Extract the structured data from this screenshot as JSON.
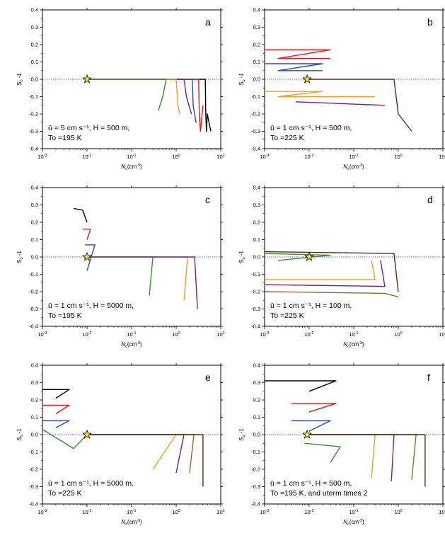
{
  "chart_data": [
    {
      "panel": "a",
      "type": "line",
      "ylabel": "S_o -1",
      "xlabel": "N_c(cm^-3)",
      "xscale": "log",
      "xlim": [
        0.001,
        10
      ],
      "ylim": [
        -0.4,
        0.4
      ],
      "annotation": [
        "ū = 5 cm s⁻¹, H = 500 m,",
        "To =195 K"
      ],
      "star": [
        0.01,
        0.0
      ],
      "series": [
        {
          "color": "#000000",
          "points": [
            [
              0.01,
              0
            ],
            [
              4.5,
              0
            ],
            [
              4.6,
              -0.2
            ],
            [
              4.8,
              -0.3
            ],
            [
              5,
              -0.2
            ],
            [
              6,
              -0.3
            ]
          ]
        },
        {
          "color": "#e01818",
          "points": [
            [
              0.01,
              0
            ],
            [
              3.2,
              0
            ],
            [
              3.3,
              -0.2
            ],
            [
              3.5,
              -0.3
            ],
            [
              4,
              -0.15
            ]
          ]
        },
        {
          "color": "#2a48b0",
          "points": [
            [
              0.01,
              0
            ],
            [
              2.3,
              0
            ],
            [
              2.4,
              -0.15
            ],
            [
              2.8,
              -0.25
            ]
          ]
        },
        {
          "color": "#7a1e80",
          "points": [
            [
              0.01,
              0
            ],
            [
              1.5,
              0
            ],
            [
              1.7,
              -0.1
            ],
            [
              2.2,
              -0.2
            ]
          ]
        },
        {
          "color": "#f0a020",
          "points": [
            [
              0.01,
              0
            ],
            [
              1,
              0
            ],
            [
              1.1,
              -0.15
            ],
            [
              1.2,
              -0.2
            ]
          ]
        },
        {
          "color": "#3a8a30",
          "points": [
            [
              0.01,
              0
            ],
            [
              0.6,
              0
            ],
            [
              0.5,
              -0.1
            ],
            [
              0.4,
              -0.18
            ]
          ]
        }
      ]
    },
    {
      "panel": "b",
      "type": "line",
      "ylabel": "S_o -1",
      "xlabel": "N_c(cm^-3)",
      "xscale": "log",
      "xlim": [
        0.001,
        10
      ],
      "ylim": [
        -0.4,
        0.4
      ],
      "annotation": [
        "ū = 1 cm s⁻¹, H = 500 m,",
        "To =225 K"
      ],
      "star": [
        0.009,
        0.0
      ],
      "series": [
        {
          "color": "#e01818",
          "points": [
            [
              0.001,
              0.17
            ],
            [
              0.03,
              0.17
            ],
            [
              0.002,
              0.12
            ],
            [
              0.03,
              0.12
            ]
          ]
        },
        {
          "color": "#2a48b0",
          "points": [
            [
              0.001,
              0.09
            ],
            [
              0.02,
              0.09
            ],
            [
              0.002,
              0.05
            ],
            [
              0.02,
              0.05
            ]
          ]
        },
        {
          "color": "#f0a020",
          "points": [
            [
              0.001,
              -0.07
            ],
            [
              0.02,
              -0.07
            ],
            [
              0.002,
              -0.1
            ],
            [
              0.3,
              -0.1
            ]
          ]
        },
        {
          "color": "#7a1e80",
          "points": [
            [
              0.005,
              -0.13
            ],
            [
              0.05,
              -0.14
            ],
            [
              0.5,
              -0.15
            ]
          ]
        },
        {
          "color": "#5a2a10",
          "points": [
            [
              0.01,
              0
            ],
            [
              0.8,
              0
            ],
            [
              1,
              -0.2
            ],
            [
              2,
              -0.3
            ]
          ]
        }
      ]
    },
    {
      "panel": "c",
      "type": "line",
      "ylabel": "S_o -1",
      "xlabel": "N_c(cm^-3)",
      "xscale": "log",
      "xlim": [
        0.001,
        10
      ],
      "ylim": [
        -0.4,
        0.4
      ],
      "annotation": [
        "ū = 1 cm s⁻¹, H = 5000 m,",
        "To =195 K"
      ],
      "star": [
        0.01,
        0.0
      ],
      "series": [
        {
          "color": "#000000",
          "points": [
            [
              0.005,
              0.28
            ],
            [
              0.008,
              0.27
            ],
            [
              0.01,
              0.2
            ]
          ]
        },
        {
          "color": "#e01818",
          "points": [
            [
              0.008,
              0.16
            ],
            [
              0.012,
              0.16
            ],
            [
              0.01,
              0.1
            ]
          ]
        },
        {
          "color": "#2a48b0",
          "points": [
            [
              0.009,
              0.07
            ],
            [
              0.015,
              0.07
            ],
            [
              0.01,
              -0.08
            ]
          ]
        },
        {
          "color": "#3a8a30",
          "points": [
            [
              0.01,
              0
            ],
            [
              0.3,
              0
            ],
            [
              0.25,
              -0.22
            ]
          ]
        },
        {
          "color": "#f0a020",
          "points": [
            [
              0.01,
              0
            ],
            [
              1.8,
              0
            ],
            [
              1.5,
              -0.25
            ]
          ]
        },
        {
          "color": "#7a1e80",
          "points": [
            [
              0.01,
              0
            ],
            [
              2.6,
              0
            ],
            [
              3,
              -0.3
            ]
          ]
        }
      ]
    },
    {
      "panel": "d",
      "type": "line",
      "ylabel": "S_o -1",
      "xlabel": "N_c(cm^-3)",
      "xscale": "log",
      "xlim": [
        0.001,
        10
      ],
      "ylim": [
        -0.4,
        0.4
      ],
      "annotation": [
        "ū = 1 cm s⁻¹, H = 100 m,",
        "To =225 K"
      ],
      "star": [
        0.01,
        0.0
      ],
      "series": [
        {
          "color": "#3a8a30",
          "points": [
            [
              0.001,
              0.02
            ],
            [
              0.03,
              0.01
            ],
            [
              0.002,
              -0.02
            ]
          ]
        },
        {
          "color": "#5a2a10",
          "points": [
            [
              0.001,
              0.03
            ],
            [
              0.8,
              0.02
            ],
            [
              1,
              -0.2
            ]
          ]
        },
        {
          "color": "#f0a020",
          "points": [
            [
              0.001,
              -0.13
            ],
            [
              0.3,
              -0.13
            ],
            [
              0.25,
              -0.02
            ]
          ]
        },
        {
          "color": "#7a1e80",
          "points": [
            [
              0.001,
              -0.16
            ],
            [
              0.5,
              -0.17
            ],
            [
              0.4,
              -0.02
            ]
          ]
        },
        {
          "color": "#9a6a28",
          "points": [
            [
              0.001,
              -0.2
            ],
            [
              0.5,
              -0.21
            ],
            [
              1,
              -0.23
            ]
          ]
        }
      ]
    },
    {
      "panel": "e",
      "type": "line",
      "ylabel": "S_o -1",
      "xlabel": "N_c(cm^-3)",
      "xscale": "log",
      "xlim": [
        0.001,
        10
      ],
      "ylim": [
        -0.4,
        0.4
      ],
      "annotation": [
        "ū = 1 cm s⁻¹, H = 5000 m,",
        "To =225 K"
      ],
      "star": [
        0.01,
        0.0
      ],
      "series": [
        {
          "color": "#000000",
          "points": [
            [
              0.001,
              0.26
            ],
            [
              0.004,
              0.26
            ],
            [
              0.002,
              0.21
            ]
          ]
        },
        {
          "color": "#e01818",
          "points": [
            [
              0.001,
              0.17
            ],
            [
              0.004,
              0.17
            ],
            [
              0.002,
              0.12
            ]
          ]
        },
        {
          "color": "#2a48b0",
          "points": [
            [
              0.001,
              0.08
            ],
            [
              0.004,
              0.08
            ],
            [
              0.002,
              0.04
            ]
          ]
        },
        {
          "color": "#3a8a30",
          "points": [
            [
              0.001,
              0.03
            ],
            [
              0.005,
              -0.08
            ],
            [
              0.01,
              0
            ]
          ]
        },
        {
          "color": "#f0a020",
          "points": [
            [
              0.01,
              0
            ],
            [
              1,
              0
            ],
            [
              0.3,
              -0.2
            ]
          ]
        },
        {
          "color": "#7a1e80",
          "points": [
            [
              0.01,
              0
            ],
            [
              1.5,
              0
            ],
            [
              1,
              -0.22
            ]
          ]
        },
        {
          "color": "#9a6a28",
          "points": [
            [
              0.01,
              0
            ],
            [
              2.5,
              0
            ],
            [
              2,
              -0.22
            ]
          ]
        },
        {
          "color": "#5a2a10",
          "points": [
            [
              0.01,
              0
            ],
            [
              4,
              0
            ],
            [
              4,
              -0.3
            ]
          ]
        }
      ]
    },
    {
      "panel": "f",
      "type": "line",
      "ylabel": "S_o -1",
      "xlabel": "N_c(cm^-3)",
      "xscale": "log",
      "xlim": [
        0.001,
        10
      ],
      "ylim": [
        -0.4,
        0.4
      ],
      "annotation": [
        "ū = 1 cm s⁻¹, H = 500 m,",
        "To =195 K, and uterm times 2"
      ],
      "star": [
        0.009,
        0.0
      ],
      "series": [
        {
          "color": "#000000",
          "points": [
            [
              0.001,
              0.31
            ],
            [
              0.04,
              0.31
            ],
            [
              0.01,
              0.25
            ]
          ]
        },
        {
          "color": "#e01818",
          "points": [
            [
              0.004,
              0.18
            ],
            [
              0.04,
              0.18
            ],
            [
              0.01,
              0.13
            ]
          ]
        },
        {
          "color": "#2a48b0",
          "points": [
            [
              0.004,
              0.08
            ],
            [
              0.03,
              0.08
            ],
            [
              0.01,
              0.02
            ]
          ]
        },
        {
          "color": "#3a8a30",
          "points": [
            [
              0.008,
              -0.05
            ],
            [
              0.05,
              -0.07
            ],
            [
              0.03,
              -0.16
            ]
          ]
        },
        {
          "color": "#f0a020",
          "points": [
            [
              0.01,
              0
            ],
            [
              0.3,
              0
            ],
            [
              0.25,
              -0.25
            ]
          ]
        },
        {
          "color": "#7a1e80",
          "points": [
            [
              0.01,
              0
            ],
            [
              0.8,
              0
            ],
            [
              0.7,
              -0.27
            ]
          ]
        },
        {
          "color": "#9a6a28",
          "points": [
            [
              0.01,
              0
            ],
            [
              2.5,
              0
            ],
            [
              2,
              -0.26
            ]
          ]
        },
        {
          "color": "#5a2a10",
          "points": [
            [
              0.01,
              0
            ],
            [
              4,
              0
            ],
            [
              4,
              -0.3
            ]
          ]
        }
      ]
    }
  ]
}
